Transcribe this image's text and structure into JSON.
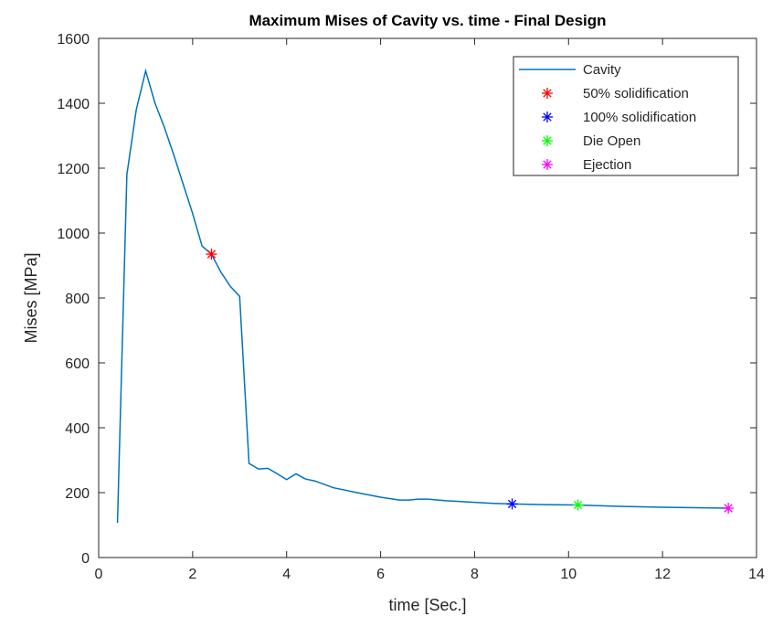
{
  "chart_data": {
    "type": "line",
    "title": "Maximum Mises of Cavity vs. time - Final Design",
    "xlabel": "time [Sec.]",
    "ylabel": "Mises [MPa]",
    "xlim": [
      0,
      14
    ],
    "ylim": [
      0,
      1600
    ],
    "xticks": [
      0,
      2,
      4,
      6,
      8,
      10,
      12,
      14
    ],
    "yticks": [
      0,
      200,
      400,
      600,
      800,
      1000,
      1200,
      1400,
      1600
    ],
    "grid": false,
    "legend_placement": "top-right",
    "series": [
      {
        "name": "Cavity",
        "color": "#0072bd",
        "x": [
          0.4,
          0.6,
          0.8,
          1.0,
          1.2,
          1.4,
          1.6,
          1.8,
          2.0,
          2.2,
          2.4,
          2.6,
          2.8,
          3.0,
          3.2,
          3.4,
          3.6,
          3.8,
          4.0,
          4.2,
          4.4,
          4.6,
          5.0,
          5.5,
          6.0,
          6.4,
          6.6,
          6.8,
          7.0,
          7.4,
          8.0,
          8.4,
          8.8,
          9.5,
          10.2,
          11.0,
          12.0,
          13.4
        ],
        "y": [
          107,
          1180,
          1380,
          1500,
          1400,
          1325,
          1240,
          1150,
          1060,
          960,
          935,
          880,
          836,
          805,
          290,
          273,
          275,
          258,
          240,
          258,
          242,
          236,
          215,
          200,
          186,
          177,
          177,
          180,
          180,
          175,
          170,
          167,
          165,
          163,
          162,
          158,
          155,
          152
        ]
      }
    ],
    "markers": [
      {
        "name": "50% solidification",
        "x": 2.4,
        "y": 935,
        "color": "#ff0000"
      },
      {
        "name": "100% solidification",
        "x": 8.8,
        "y": 165,
        "color": "#0000ff"
      },
      {
        "name": "Die Open",
        "x": 10.2,
        "y": 162,
        "color": "#00ff00"
      },
      {
        "name": "Ejection",
        "x": 13.4,
        "y": 152,
        "color": "#ff00ff"
      }
    ]
  }
}
